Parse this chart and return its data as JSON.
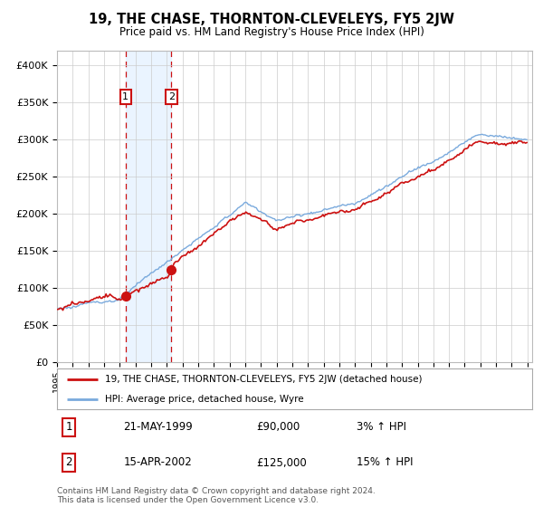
{
  "title": "19, THE CHASE, THORNTON-CLEVELEYS, FY5 2JW",
  "subtitle": "Price paid vs. HM Land Registry's House Price Index (HPI)",
  "sale1_price": 90000,
  "sale1_year": 1999.37,
  "sale2_price": 125000,
  "sale2_year": 2002.29,
  "hpi_color": "#7aaadd",
  "price_color": "#cc1111",
  "vline_color": "#cc1111",
  "shade_color": "#ddeeff",
  "legend_label1": "19, THE CHASE, THORNTON-CLEVELEYS, FY5 2JW (detached house)",
  "legend_label2": "HPI: Average price, detached house, Wyre",
  "table_row1": [
    "1",
    "21-MAY-1999",
    "£90,000",
    "3% ↑ HPI"
  ],
  "table_row2": [
    "2",
    "15-APR-2002",
    "£125,000",
    "15% ↑ HPI"
  ],
  "footnote": "Contains HM Land Registry data © Crown copyright and database right 2024.\nThis data is licensed under the Open Government Licence v3.0.",
  "ylim": [
    0,
    420000
  ],
  "yticks": [
    0,
    50000,
    100000,
    150000,
    200000,
    250000,
    300000,
    350000,
    400000
  ],
  "background_color": "#ffffff",
  "grid_color": "#cccccc",
  "xstart": 1995,
  "xend": 2025
}
